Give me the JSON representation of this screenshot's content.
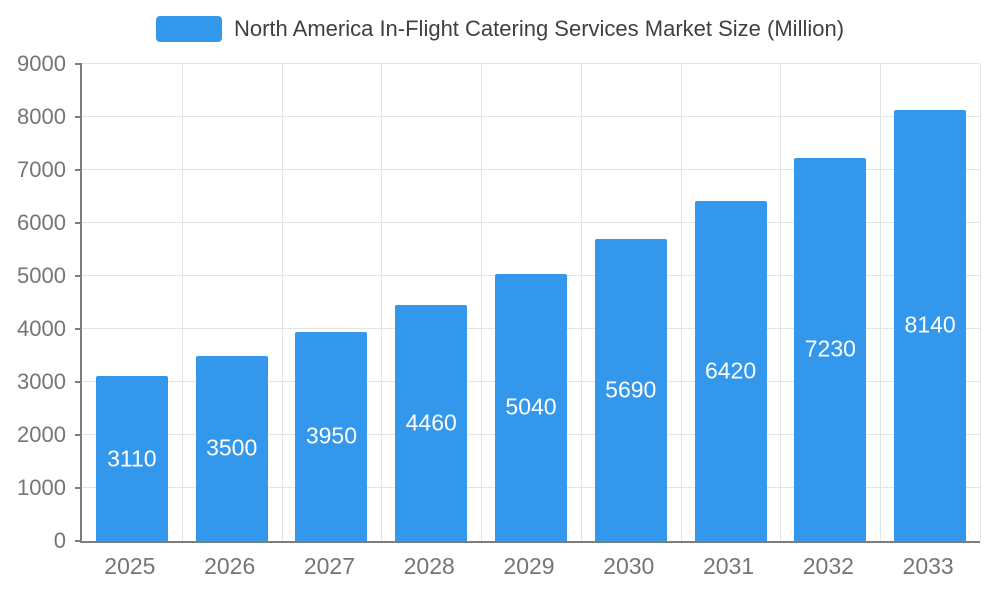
{
  "chart_data": {
    "type": "bar",
    "title": "North America In-Flight Catering Services Market Size (Million)",
    "categories": [
      "2025",
      "2026",
      "2027",
      "2028",
      "2029",
      "2030",
      "2031",
      "2032",
      "2033"
    ],
    "values": [
      3110,
      3500,
      3950,
      4460,
      5040,
      5690,
      6420,
      7230,
      8140
    ],
    "xlabel": "",
    "ylabel": "",
    "ylim": [
      0,
      9000
    ],
    "ytick_step": 1000,
    "grid": true,
    "legend_position": "top",
    "colors": {
      "bar": "#3398eb",
      "bar_label": "#ffffff",
      "axis_line": "#7d7d7d",
      "axis_text": "#757575",
      "grid_line": "#e3e3e3",
      "title_text": "#404040"
    }
  }
}
